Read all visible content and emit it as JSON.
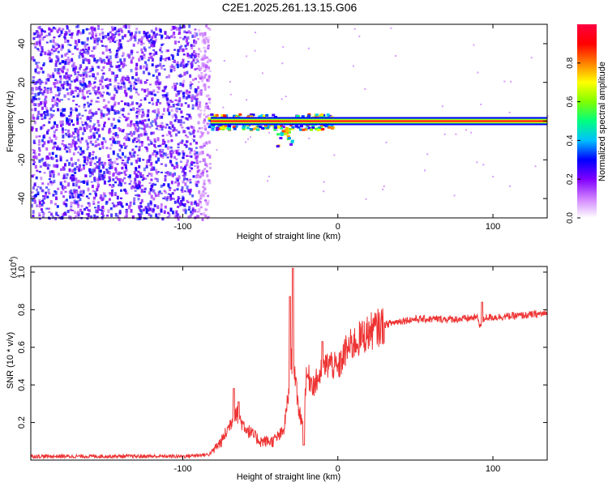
{
  "title": "C2E1.2025.261.13.15.G06",
  "chart_data": [
    {
      "type": "heatmap",
      "name": "spectrogram",
      "xlabel": "Height of straight line (km)",
      "ylabel": "Frequency (Hz)",
      "xlim": [
        -198,
        135
      ],
      "ylim": [
        -50,
        50
      ],
      "xticks": [
        -100,
        0,
        100
      ],
      "yticks": [
        -40,
        -20,
        0,
        20,
        40
      ],
      "xtick_labels": [
        "-100",
        "0",
        "100"
      ],
      "ytick_labels": [
        "-40",
        "-20",
        "0",
        "20",
        "40"
      ],
      "noise_region_x": [
        -198,
        -83
      ],
      "signal_band": {
        "x_start": -82,
        "x_end": 135,
        "frequency": 0
      },
      "colorbar": {
        "label": "Normalized spectral amplitude",
        "range": [
          0,
          1
        ],
        "ticks": [
          0.0,
          0.2,
          0.4,
          0.6,
          0.8
        ],
        "tick_labels": [
          "0.0",
          "0.2",
          "0.4",
          "0.6",
          "0.8"
        ],
        "colors": [
          "#ffffff",
          "#d080ff",
          "#8000ff",
          "#0000ff",
          "#00c0ff",
          "#00ff80",
          "#80ff00",
          "#ffff00",
          "#ff8000",
          "#ff0000",
          "#ff0040"
        ]
      }
    },
    {
      "type": "line",
      "name": "snr",
      "xlabel": "Height of straight line (km)",
      "ylabel": "SNR (10 * v/v)",
      "y_multiplier": "(x10",
      "y_multiplier_exp": "4",
      "y_multiplier_close": ")",
      "xlim": [
        -198,
        135
      ],
      "ylim": [
        0,
        1.03
      ],
      "xticks": [
        -100,
        0,
        100
      ],
      "yticks": [
        0.2,
        0.4,
        0.6,
        0.8,
        1.0
      ],
      "xtick_labels": [
        "-100",
        "0",
        "100"
      ],
      "ytick_labels": [
        "0.2",
        "0.4",
        "0.6",
        "0.8",
        "1.0"
      ],
      "color": "#ee3333",
      "envelope": {
        "x": [
          -198,
          -150,
          -100,
          -83,
          -75,
          -70,
          -66,
          -62,
          -57,
          -50,
          -42,
          -35,
          -31,
          -29,
          -26,
          -23,
          -20,
          -15,
          -10,
          -5,
          0,
          5,
          10,
          20,
          30,
          40,
          50,
          60,
          80,
          90,
          92,
          95,
          100,
          120,
          135
        ],
        "y": [
          0.02,
          0.02,
          0.02,
          0.03,
          0.1,
          0.18,
          0.26,
          0.2,
          0.15,
          0.1,
          0.1,
          0.15,
          0.4,
          0.6,
          0.3,
          0.2,
          0.45,
          0.4,
          0.48,
          0.52,
          0.48,
          0.58,
          0.62,
          0.68,
          0.72,
          0.74,
          0.75,
          0.75,
          0.75,
          0.76,
          0.71,
          0.76,
          0.76,
          0.77,
          0.78
        ]
      },
      "spikes": [
        {
          "x": -67,
          "y": 0.38
        },
        {
          "x": -64,
          "y": 0.31
        },
        {
          "x": -31,
          "y": 0.87
        },
        {
          "x": -29,
          "y": 1.02
        },
        {
          "x": -22,
          "y": 0.08
        },
        {
          "x": -10,
          "y": 0.63
        },
        {
          "x": 93,
          "y": 0.84
        }
      ]
    }
  ]
}
